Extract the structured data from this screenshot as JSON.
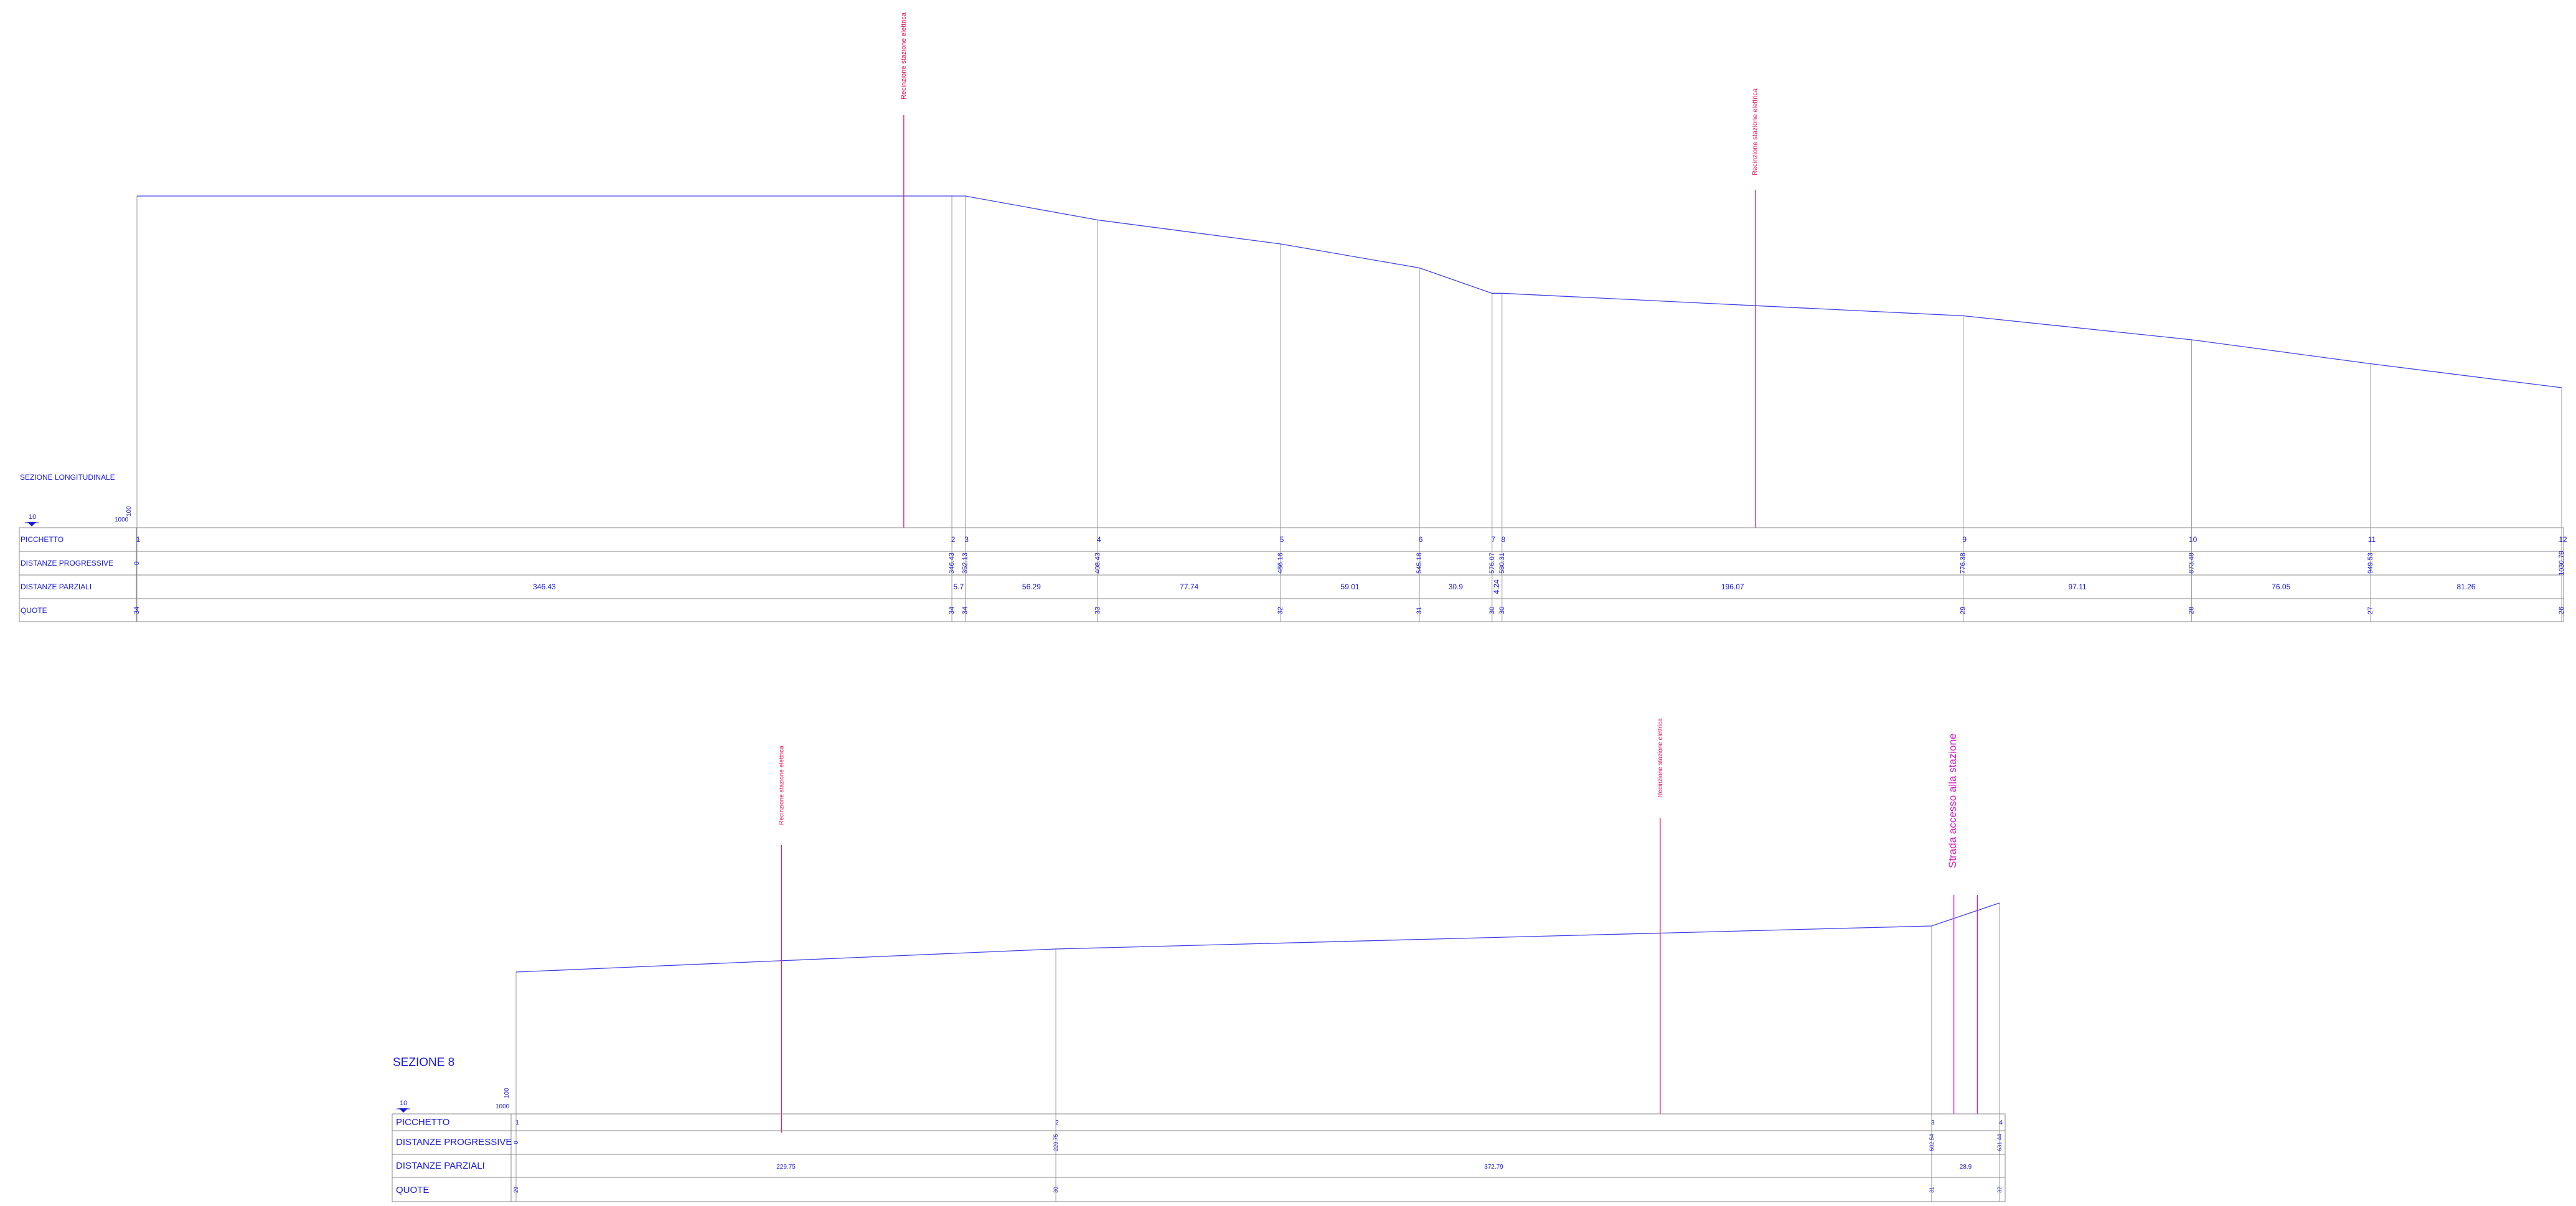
{
  "section1": {
    "title": "SEZIONE LONGITUDINALE",
    "scale_h": "10",
    "scale_v": "100",
    "scale_ref": "1000",
    "row_labels": {
      "picchetto": "PICCHETTO",
      "progressive": "DISTANZE PROGRESSIVE",
      "parziali": "DISTANZE PARZIALI",
      "quote": "QUOTE"
    },
    "stations": [
      {
        "picchetto": "1",
        "progressiva": "0",
        "quota": "34"
      },
      {
        "picchetto": "2",
        "progressiva": "346.43",
        "quota": "34"
      },
      {
        "picchetto": "3",
        "progressiva": "352.13",
        "quota": "34"
      },
      {
        "picchetto": "4",
        "progressiva": "408.43",
        "quota": "33"
      },
      {
        "picchetto": "5",
        "progressiva": "486.16",
        "quota": "32"
      },
      {
        "picchetto": "6",
        "progressiva": "545.18",
        "quota": "31"
      },
      {
        "picchetto": "7",
        "progressiva": "576.07",
        "quota": "30"
      },
      {
        "picchetto": "8",
        "progressiva": "580.31",
        "quota": "30"
      },
      {
        "picchetto": "9",
        "progressiva": "776.38",
        "quota": "29"
      },
      {
        "picchetto": "10",
        "progressiva": "873.48",
        "quota": "28"
      },
      {
        "picchetto": "11",
        "progressiva": "949.53",
        "quota": "27"
      },
      {
        "picchetto": "12",
        "progressiva": "1030.79",
        "quota": "26"
      }
    ],
    "partials": [
      "346.43",
      "5.7",
      "56.29",
      "77.74",
      "59.01",
      "30.9",
      "4.24",
      "196.07",
      "97.11",
      "76.05",
      "81.26"
    ],
    "annotations": [
      {
        "label": "Recinzione stazione elettrica",
        "chainage": 326
      },
      {
        "label": "Recinzione stazione elettrica",
        "chainage": 688
      }
    ]
  },
  "section2": {
    "title": "SEZIONE 8",
    "scale_h": "10",
    "scale_v": "100",
    "scale_ref": "1000",
    "row_labels": {
      "picchetto": "PICCHETTO",
      "progressive": "DISTANZE PROGRESSIVE",
      "parziali": "DISTANZE PARZIALI",
      "quote": "QUOTE"
    },
    "stations": [
      {
        "picchetto": "1",
        "progressiva": "0",
        "quota": "29"
      },
      {
        "picchetto": "2",
        "progressiva": "229.75",
        "quota": "30"
      },
      {
        "picchetto": "3",
        "progressiva": "602.54",
        "quota": "31"
      },
      {
        "picchetto": "4",
        "progressiva": "631.44",
        "quota": "32"
      }
    ],
    "partials": [
      "229.75",
      "372.79",
      "28.9"
    ],
    "annotations": [
      {
        "label": "Recinzione stazione elettrica",
        "chainage": 113
      },
      {
        "label": "Recinzione stazione elettrica",
        "chainage": 487
      }
    ],
    "road_label": "Strada accesso alla stazione"
  },
  "colors": {
    "profile": "#4040e8",
    "grid": "#9a9a9a",
    "text": "#1a1ad6",
    "annotation": "#e8185a",
    "road": "#d21cc8"
  }
}
